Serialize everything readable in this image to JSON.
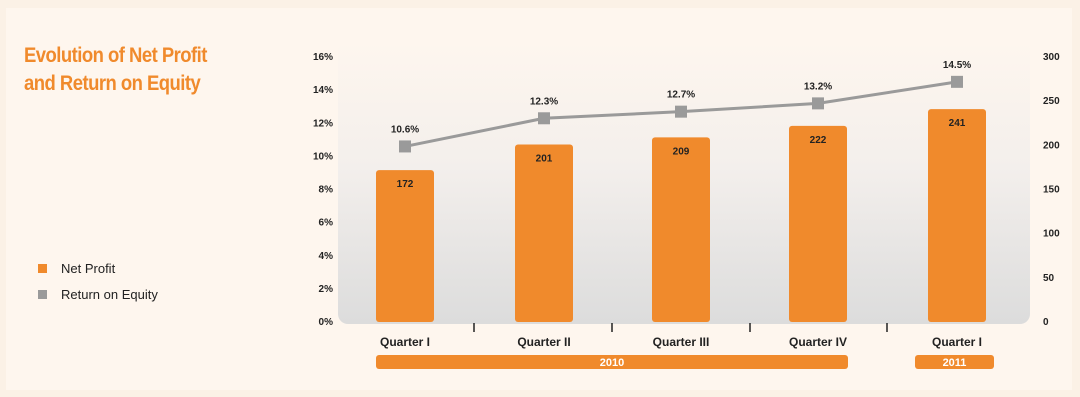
{
  "title": {
    "line1": "Evolution of Net Profit",
    "line2": "and Return on Equity"
  },
  "legend": [
    {
      "label": "Net Profit",
      "color": "#f08a2c"
    },
    {
      "label": "Return on Equity",
      "color": "#9a9a9a"
    }
  ],
  "colors": {
    "bar": "#f08a2c",
    "line": "#9a9a9a",
    "marker": "#9a9a9a",
    "year_band": "#f08a2c"
  },
  "chart_data": {
    "type": "bar",
    "categories": [
      "Quarter I",
      "Quarter II",
      "Quarter III",
      "Quarter IV",
      "Quarter I"
    ],
    "series": [
      {
        "name": "Net Profit",
        "type": "bar",
        "axis": "right",
        "values": [
          172,
          201,
          209,
          222,
          241
        ],
        "labels": [
          "172",
          "201",
          "209",
          "222",
          "241"
        ]
      },
      {
        "name": "Return on Equity",
        "type": "line",
        "axis": "left",
        "values": [
          10.6,
          12.3,
          12.7,
          13.2,
          14.5
        ],
        "labels": [
          "10.6%",
          "12.3%",
          "12.7%",
          "13.2%",
          "14.5%"
        ]
      }
    ],
    "left_axis": {
      "min": 0,
      "max": 16,
      "ticks": [
        "0%",
        "2%",
        "4%",
        "6%",
        "8%",
        "10%",
        "12%",
        "14%",
        "16%"
      ]
    },
    "right_axis": {
      "min": 0,
      "max": 300,
      "ticks": [
        "0",
        "50",
        "100",
        "150",
        "200",
        "250",
        "300"
      ]
    },
    "year_groups": [
      {
        "label": "2010",
        "from": 0,
        "to": 3
      },
      {
        "label": "2011",
        "from": 4,
        "to": 4
      }
    ],
    "legend_position": "left"
  }
}
